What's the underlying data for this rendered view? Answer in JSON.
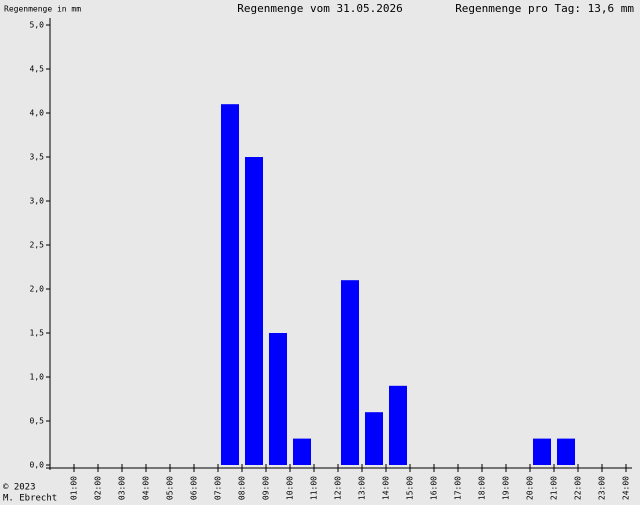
{
  "chart_data": {
    "type": "histogram",
    "y_label": "Regenmenge in mm",
    "title": "Regenmenge vom 31.05.2026",
    "subtitle": "Regenmenge pro Tag: 13,6 mm",
    "footer": [
      "© 2023",
      "M. Ebrecht"
    ],
    "bins": [
      0,
      1,
      2,
      3,
      4,
      5,
      6,
      7,
      8,
      9,
      10,
      11,
      12,
      13,
      14,
      15,
      16,
      17,
      18,
      19,
      20,
      21,
      22,
      23,
      24
    ],
    "values": [
      0,
      0,
      0,
      0,
      0,
      0,
      0,
      4.1,
      3.5,
      1.5,
      0.3,
      0,
      2.1,
      0.6,
      0.9,
      0,
      0,
      0,
      0,
      0,
      0.3,
      0.3,
      0,
      0
    ],
    "color": "#0000ff",
    "xlim": [
      0,
      24
    ],
    "xticks": [
      {
        "value": 1,
        "label": "01:00"
      },
      {
        "value": 2,
        "label": "02:00"
      },
      {
        "value": 3,
        "label": "03:00"
      },
      {
        "value": 4,
        "label": "04:00"
      },
      {
        "value": 5,
        "label": "05:00"
      },
      {
        "value": 6,
        "label": "06:00"
      },
      {
        "value": 7,
        "label": "07:00"
      },
      {
        "value": 8,
        "label": "08:00"
      },
      {
        "value": 9,
        "label": "09:00"
      },
      {
        "value": 10,
        "label": "10:00"
      },
      {
        "value": 11,
        "label": "11:00"
      },
      {
        "value": 12,
        "label": "12:00"
      },
      {
        "value": 13,
        "label": "13:00"
      },
      {
        "value": 14,
        "label": "14:00"
      },
      {
        "value": 15,
        "label": "15:00"
      },
      {
        "value": 16,
        "label": "16:00"
      },
      {
        "value": 17,
        "label": "17:00"
      },
      {
        "value": 18,
        "label": "18:00"
      },
      {
        "value": 19,
        "label": "19:00"
      },
      {
        "value": 20,
        "label": "20:00"
      },
      {
        "value": 21,
        "label": "21:00"
      },
      {
        "value": 22,
        "label": "22:00"
      },
      {
        "value": 23,
        "label": "23:00"
      },
      {
        "value": 24,
        "label": "24:00"
      }
    ],
    "ylim": [
      0,
      5
    ],
    "yticks": [
      {
        "value": 0,
        "label": "0,0"
      },
      {
        "value": 0.5,
        "label": "0,5"
      },
      {
        "value": 1,
        "label": "1,0"
      },
      {
        "value": 1.5,
        "label": "1,5"
      },
      {
        "value": 2,
        "label": "2,0"
      },
      {
        "value": 2.5,
        "label": "2,5"
      },
      {
        "value": 3,
        "label": "3,0"
      },
      {
        "value": 3.5,
        "label": "3,5"
      },
      {
        "value": 4,
        "label": "4,0"
      },
      {
        "value": 4.5,
        "label": "4,5"
      },
      {
        "value": 5,
        "label": "5,0"
      }
    ]
  }
}
